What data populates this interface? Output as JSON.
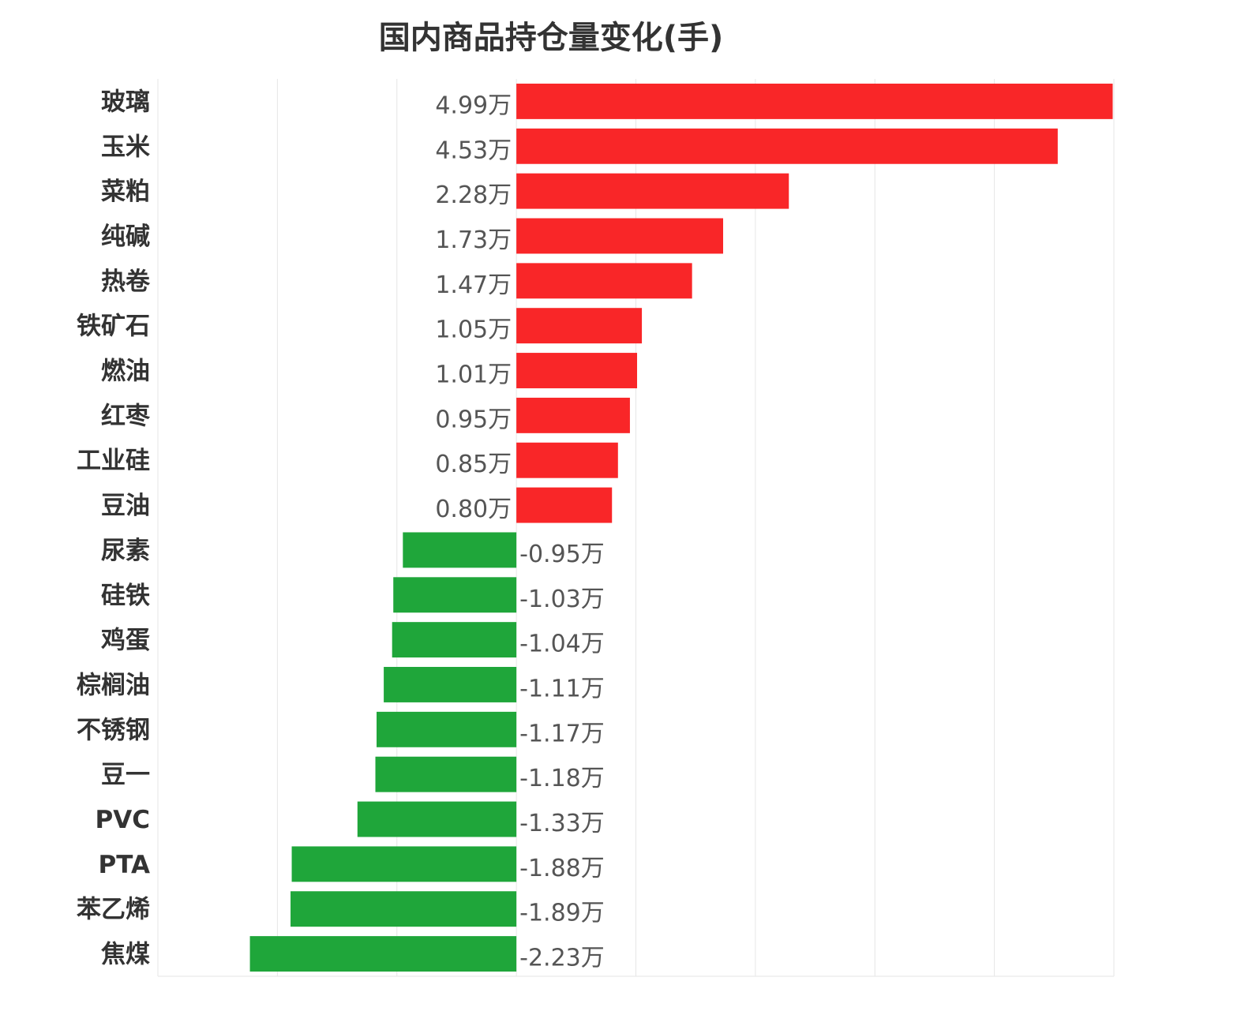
{
  "chart_data": {
    "type": "bar",
    "orientation": "horizontal",
    "title": "国内商品持仓量变化(手)",
    "xlabel": "",
    "ylabel": "",
    "unit_suffix": "万",
    "xlim": [
      -3,
      5
    ],
    "grid": true,
    "colors": {
      "positive": "#f92628",
      "negative": "#1fa63a"
    },
    "categories": [
      "玻璃",
      "玉米",
      "菜粕",
      "纯碱",
      "热卷",
      "铁矿石",
      "燃油",
      "红枣",
      "工业硅",
      "豆油",
      "尿素",
      "硅铁",
      "鸡蛋",
      "棕榈油",
      "不锈钢",
      "豆一",
      "PVC",
      "PTA",
      "苯乙烯",
      "焦煤"
    ],
    "values": [
      4.99,
      4.53,
      2.28,
      1.73,
      1.47,
      1.05,
      1.01,
      0.95,
      0.85,
      0.8,
      -0.95,
      -1.03,
      -1.04,
      -1.11,
      -1.17,
      -1.18,
      -1.33,
      -1.88,
      -1.89,
      -2.23
    ],
    "labels": [
      "4.99万",
      "4.53万",
      "2.28万",
      "1.73万",
      "1.47万",
      "1.05万",
      "1.01万",
      "0.95万",
      "0.85万",
      "0.80万",
      "-0.95万",
      "-1.03万",
      "-1.04万",
      "-1.11万",
      "-1.17万",
      "-1.18万",
      "-1.33万",
      "-1.88万",
      "-1.89万",
      "-2.23万"
    ]
  }
}
